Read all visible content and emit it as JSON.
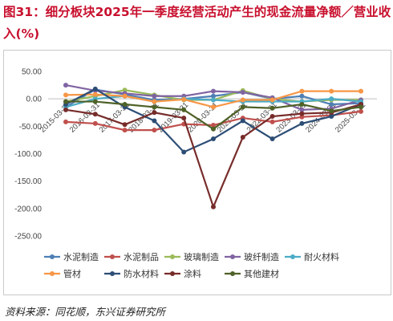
{
  "title": "图31：细分板块2025年一季度经营活动产生的现金流量净额／营业收入(%)",
  "source": "资料来源：同花顺，东兴证券研究所",
  "chart_data": {
    "type": "line",
    "title": "图31：细分板块2025年一季度经营活动产生的现金流量净额／营业收入(%)",
    "ylim": [
      -250,
      50
    ],
    "yticks": [
      "50.00",
      "0.00",
      "-50.00",
      "-100.00",
      "-150.00",
      "-200.00",
      "-250.00"
    ],
    "ytick_values": [
      50,
      0,
      -50,
      -100,
      -150,
      -200,
      -250
    ],
    "x": [
      "2015-03-31",
      "2016-03-31",
      "2017-03-31",
      "2018-03-31",
      "2019-03-31",
      "2020-03-31",
      "2021-03-31",
      "2022-03-31",
      "2023-03-31",
      "2024-03-31",
      "2025-03-31"
    ],
    "grid": false,
    "legend_placement": "bottom",
    "series": [
      {
        "name": "水泥制造",
        "color": "#4e7fb5",
        "values": [
          -15,
          17,
          8,
          -2,
          0,
          5,
          12,
          0,
          5,
          -10,
          -8
        ]
      },
      {
        "name": "水泥制品",
        "color": "#c0504d",
        "values": [
          -42,
          -45,
          -57,
          -57,
          -46,
          -48,
          -35,
          -42,
          -33,
          -30,
          -23
        ]
      },
      {
        "name": "玻璃制造",
        "color": "#9bbb59",
        "values": [
          -5,
          5,
          16,
          7,
          -2,
          -2,
          15,
          0,
          -5,
          -2,
          -2
        ]
      },
      {
        "name": "玻纤制造",
        "color": "#8064a2",
        "values": [
          25,
          15,
          10,
          5,
          5,
          14,
          12,
          2,
          -20,
          -18,
          -2
        ]
      },
      {
        "name": "耐火材料",
        "color": "#4bacc6",
        "values": [
          -15,
          0,
          5,
          -5,
          0,
          -2,
          -5,
          -5,
          -5,
          0,
          -5
        ]
      },
      {
        "name": "管材",
        "color": "#f79646",
        "values": [
          7,
          8,
          5,
          -5,
          -1,
          -15,
          -2,
          -2,
          14,
          14,
          14
        ]
      },
      {
        "name": "防水材料",
        "color": "#2c4d75",
        "values": [
          -10,
          18,
          -15,
          -40,
          -97,
          -73,
          -40,
          -73,
          -45,
          -32,
          -10
        ]
      },
      {
        "name": "涂料",
        "color": "#772c2a",
        "values": [
          -20,
          -28,
          -47,
          -25,
          -35,
          -197,
          -70,
          -32,
          -27,
          -25,
          -10
        ]
      },
      {
        "name": "其他建材",
        "color": "#4f6228",
        "values": [
          -5,
          -5,
          -10,
          -15,
          -20,
          -55,
          -15,
          -17,
          -10,
          -22,
          -15
        ]
      }
    ]
  }
}
